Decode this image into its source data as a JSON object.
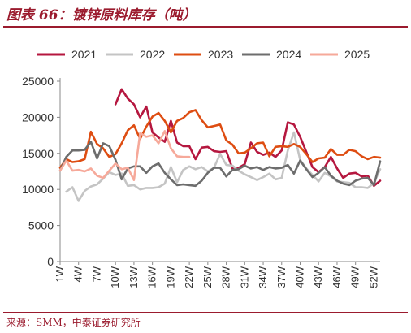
{
  "header": {
    "title": "图表 66：镀锌原料库存（吨）"
  },
  "footer": {
    "source": "来源：SMM，中泰证券研究所"
  },
  "chart_data": {
    "type": "line",
    "title": "图表 66：镀锌原料库存（吨）",
    "xlabel": "",
    "ylabel": "",
    "ylim": [
      0,
      25000
    ],
    "y_ticks": [
      0,
      5000,
      10000,
      15000,
      20000,
      25000
    ],
    "y_tick_labels": [
      "0",
      "5000",
      "10000",
      "15000",
      "20000",
      "25000"
    ],
    "x_ticks": [
      1,
      4,
      7,
      10,
      13,
      16,
      19,
      22,
      25,
      28,
      31,
      34,
      37,
      40,
      43,
      46,
      49,
      52
    ],
    "x_tick_labels": [
      "1W",
      "4W",
      "7W",
      "10W",
      "13W",
      "16W",
      "19W",
      "22W",
      "25W",
      "28W",
      "31W",
      "34W",
      "37W",
      "40W",
      "43W",
      "46W",
      "49W",
      "52W"
    ],
    "xlim": [
      1,
      53
    ],
    "grid": false,
    "legend_position": "top",
    "series": [
      {
        "name": "2021",
        "color": "#b5173f",
        "x": [
          10,
          11,
          12,
          13,
          14,
          15,
          16,
          17,
          18,
          19,
          20,
          21,
          22,
          23,
          24,
          25,
          26,
          27,
          28,
          29,
          30,
          31,
          32,
          33,
          34,
          35,
          36,
          37,
          38,
          39,
          40,
          41,
          42,
          43,
          44,
          45,
          46,
          47,
          48,
          49,
          50,
          51,
          52,
          53
        ],
        "values": [
          21800,
          23900,
          22600,
          21800,
          20000,
          21500,
          17900,
          17200,
          16600,
          19500,
          16500,
          16000,
          16000,
          14200,
          15800,
          15900,
          15300,
          15200,
          15300,
          12900,
          13000,
          13500,
          16500,
          15200,
          14800,
          15100,
          14500,
          15400,
          19300,
          19000,
          17300,
          15200,
          13100,
          12400,
          13100,
          14500,
          12900,
          11600,
          12200,
          12300,
          11800,
          11900,
          10500,
          11200
        ]
      },
      {
        "name": "2022",
        "color": "#c4c4c4",
        "x": [
          1,
          2,
          3,
          4,
          5,
          6,
          7,
          8,
          9,
          10,
          11,
          12,
          13,
          14,
          15,
          16,
          17,
          18,
          19,
          20,
          21,
          22,
          23,
          24,
          25,
          26,
          27,
          28,
          29,
          30,
          31,
          32,
          33,
          34,
          35,
          36,
          37,
          38,
          39,
          40,
          41,
          42,
          43,
          44,
          45,
          46,
          47,
          48,
          49,
          50,
          51,
          52,
          53
        ],
        "values": [
          null,
          9700,
          10300,
          8400,
          9800,
          10400,
          10700,
          11500,
          12400,
          12000,
          12200,
          10500,
          10600,
          10000,
          10200,
          10200,
          10300,
          10800,
          13100,
          11000,
          12700,
          13200,
          12800,
          13100,
          12500,
          13000,
          14900,
          13400,
          13300,
          12600,
          12100,
          11700,
          11300,
          11700,
          12200,
          11400,
          11600,
          15400,
          17900,
          14100,
          12900,
          12000,
          11100,
          12300,
          11800,
          11100,
          11000,
          10900,
          10300,
          10300,
          10200,
          10900,
          12800
        ]
      },
      {
        "name": "2023",
        "color": "#de4d12",
        "x": [
          1,
          2,
          3,
          4,
          5,
          6,
          7,
          8,
          9,
          10,
          11,
          12,
          13,
          14,
          15,
          16,
          17,
          18,
          19,
          20,
          21,
          22,
          23,
          24,
          25,
          26,
          27,
          28,
          29,
          30,
          31,
          32,
          33,
          34,
          35,
          36,
          37,
          38,
          39,
          40,
          41,
          42,
          43,
          44,
          45,
          46,
          47,
          48,
          49,
          50,
          51,
          52,
          53
        ],
        "values": [
          13000,
          14200,
          13800,
          13900,
          14200,
          18000,
          16300,
          15700,
          14500,
          14900,
          16400,
          18200,
          18900,
          17000,
          18700,
          20100,
          20600,
          19500,
          17900,
          19500,
          19900,
          20700,
          21000,
          19600,
          18600,
          18800,
          19000,
          16800,
          16200,
          15000,
          15100,
          15700,
          16400,
          16500,
          14600,
          15900,
          16000,
          15900,
          16300,
          15900,
          14900,
          13800,
          14300,
          14400,
          15600,
          14800,
          14800,
          15500,
          15300,
          14600,
          14200,
          14500,
          14400
        ]
      },
      {
        "name": "2024",
        "color": "#6d6d6d",
        "x": [
          1,
          2,
          3,
          4,
          5,
          6,
          7,
          8,
          9,
          10,
          11,
          12,
          13,
          14,
          15,
          16,
          17,
          18,
          19,
          20,
          21,
          22,
          23,
          24,
          25,
          26,
          27,
          28,
          29,
          30,
          31,
          32,
          33,
          34,
          35,
          36,
          37,
          38,
          39,
          40,
          41,
          42,
          43,
          44,
          45,
          46,
          47,
          48,
          49,
          50,
          51,
          52,
          53
        ],
        "values": [
          12600,
          14500,
          15400,
          15400,
          15500,
          16600,
          14300,
          16400,
          16000,
          14100,
          11400,
          12900,
          13200,
          13200,
          12300,
          13200,
          13600,
          12300,
          11400,
          10600,
          10700,
          10600,
          10500,
          11200,
          12300,
          13000,
          13000,
          11800,
          12700,
          12800,
          13300,
          12900,
          13100,
          12700,
          13100,
          12900,
          13000,
          13400,
          12200,
          14000,
          12800,
          11700,
          12300,
          13100,
          11900,
          11200,
          10800,
          10600,
          11200,
          11500,
          11600,
          10600,
          13900
        ]
      },
      {
        "name": "2025",
        "color": "#f6a99a",
        "x": [
          1,
          2,
          3,
          4,
          5,
          6,
          7,
          8,
          9,
          10,
          11,
          12,
          13,
          14,
          15,
          16,
          17,
          18,
          19,
          20,
          21,
          22
        ],
        "values": [
          12600,
          14000,
          12600,
          12700,
          12500,
          12900,
          11900,
          11600,
          12600,
          13600,
          12800,
          13000,
          11300,
          17800,
          17300,
          17500,
          16400,
          18100,
          15700,
          14600,
          14500,
          14500
        ]
      }
    ]
  }
}
